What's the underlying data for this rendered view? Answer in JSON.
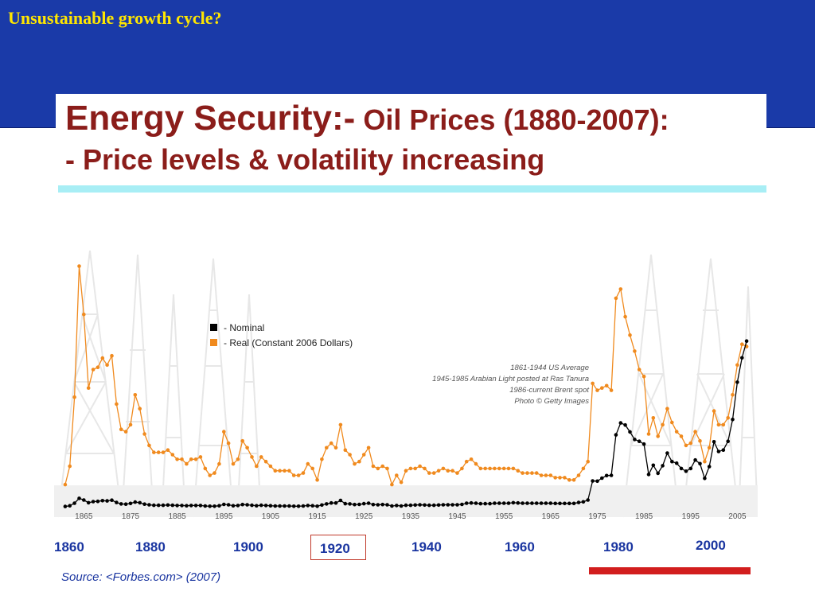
{
  "slide": {
    "title": "Unsustainable growth cycle?",
    "heading_part1": "Energy Security:-",
    "heading_part2": " Oil Prices (1880-2007):",
    "heading_line2": "- Price levels & volatility increasing",
    "source": "Source: <Forbes.com> (2007)",
    "decade_labels": [
      "1860",
      "1880",
      "1900",
      "1920",
      "1940",
      "1960",
      "1980",
      "2000"
    ],
    "highlighted_decade": "1920"
  },
  "colors": {
    "banner": "#1a3aa8",
    "title": "#ffe600",
    "heading": "#8b1d1a",
    "nominal": "#000000",
    "real": "#f08a1e",
    "labels": "#1a35a0",
    "highlight": "#d21e1e"
  },
  "chart_data": {
    "type": "line",
    "x_ticks": [
      "1865",
      "1875",
      "1885",
      "1895",
      "1905",
      "1915",
      "1925",
      "1935",
      "1945",
      "1955",
      "1965",
      "1975",
      "1985",
      "1995",
      "2005"
    ],
    "x": [
      1861,
      1862,
      1863,
      1864,
      1865,
      1866,
      1867,
      1868,
      1869,
      1870,
      1871,
      1872,
      1873,
      1874,
      1875,
      1876,
      1877,
      1878,
      1879,
      1880,
      1881,
      1882,
      1883,
      1884,
      1885,
      1886,
      1887,
      1888,
      1889,
      1890,
      1891,
      1892,
      1893,
      1894,
      1895,
      1896,
      1897,
      1898,
      1899,
      1900,
      1901,
      1902,
      1903,
      1904,
      1905,
      1906,
      1907,
      1908,
      1909,
      1910,
      1911,
      1912,
      1913,
      1914,
      1915,
      1916,
      1917,
      1918,
      1919,
      1920,
      1921,
      1922,
      1923,
      1924,
      1925,
      1926,
      1927,
      1928,
      1929,
      1930,
      1931,
      1932,
      1933,
      1934,
      1935,
      1936,
      1937,
      1938,
      1939,
      1940,
      1941,
      1942,
      1943,
      1944,
      1945,
      1946,
      1947,
      1948,
      1949,
      1950,
      1951,
      1952,
      1953,
      1954,
      1955,
      1956,
      1957,
      1958,
      1959,
      1960,
      1961,
      1962,
      1963,
      1964,
      1965,
      1966,
      1967,
      1968,
      1969,
      1970,
      1971,
      1972,
      1973,
      1974,
      1975,
      1976,
      1977,
      1978,
      1979,
      1980,
      1981,
      1982,
      1983,
      1984,
      1985,
      1986,
      1987,
      1988,
      1989,
      1990,
      1991,
      1992,
      1993,
      1994,
      1995,
      1996,
      1997,
      1998,
      1999,
      2000,
      2001,
      2002,
      2003,
      2004,
      2005,
      2006,
      2007
    ],
    "series": [
      {
        "name": "Nominal",
        "values": [
          0.5,
          0.8,
          1.9,
          4.0,
          3.3,
          2.1,
          2.6,
          2.7,
          3.0,
          2.9,
          3.2,
          2.2,
          1.6,
          1.5,
          1.8,
          2.4,
          2.1,
          1.5,
          1.2,
          1.0,
          1.0,
          1.0,
          1.1,
          1.0,
          0.9,
          0.9,
          0.8,
          0.9,
          0.9,
          0.9,
          0.7,
          0.6,
          0.6,
          0.8,
          1.4,
          1.2,
          0.8,
          0.9,
          1.3,
          1.2,
          1.0,
          0.8,
          1.0,
          0.9,
          0.8,
          0.7,
          0.7,
          0.7,
          0.7,
          0.6,
          0.6,
          0.7,
          0.9,
          0.8,
          0.6,
          1.1,
          1.6,
          2.0,
          2.0,
          3.1,
          1.7,
          1.6,
          1.3,
          1.4,
          1.7,
          1.9,
          1.3,
          1.2,
          1.3,
          1.2,
          0.7,
          0.9,
          0.7,
          1.0,
          1.0,
          1.1,
          1.2,
          1.1,
          1.0,
          1.0,
          1.1,
          1.2,
          1.2,
          1.2,
          1.2,
          1.4,
          1.9,
          2.0,
          1.9,
          1.7,
          1.7,
          1.7,
          1.9,
          1.9,
          1.9,
          1.9,
          2.1,
          2.0,
          1.9,
          1.9,
          1.9,
          1.9,
          1.9,
          1.9,
          1.9,
          1.8,
          1.8,
          1.8,
          1.8,
          1.8,
          2.2,
          2.5,
          3.3,
          11.6,
          11.5,
          12.8,
          13.9,
          14.0,
          31.6,
          36.8,
          35.9,
          32.9,
          29.6,
          28.8,
          27.6,
          14.4,
          18.4,
          14.9,
          18.2,
          23.7,
          20.0,
          19.3,
          17.0,
          15.8,
          17.0,
          20.7,
          19.1,
          12.7,
          17.8,
          28.6,
          24.4,
          25.0,
          28.8,
          38.3,
          54.5,
          65.1,
          72.4
        ]
      },
      {
        "name": "Real (Constant 2006 Dollars)",
        "values": [
          10,
          18,
          48,
          105,
          84,
          52,
          60,
          61,
          65,
          62,
          66,
          45,
          34,
          33,
          36,
          49,
          43,
          32,
          27,
          24,
          24,
          24,
          25,
          23,
          21,
          21,
          19,
          21,
          21,
          22,
          17,
          14,
          15,
          19,
          33,
          28,
          19,
          21,
          29,
          26,
          22,
          18,
          22,
          20,
          18,
          16,
          16,
          16,
          16,
          14,
          14,
          15,
          19,
          17,
          12,
          21,
          26,
          28,
          26,
          36,
          25,
          23,
          19,
          20,
          23,
          26,
          18,
          17,
          18,
          17,
          10,
          14,
          11,
          16,
          17,
          17,
          18,
          17,
          15,
          15,
          16,
          17,
          16,
          16,
          15,
          17,
          20,
          21,
          19,
          17,
          17,
          17,
          17,
          17,
          17,
          17,
          17,
          16,
          15,
          15,
          15,
          15,
          14,
          14,
          14,
          13,
          13,
          13,
          12,
          12,
          14,
          17,
          20,
          54,
          51,
          52,
          53,
          51,
          91,
          95,
          83,
          75,
          68,
          60,
          57,
          32,
          39,
          31,
          36,
          43,
          37,
          33,
          31,
          27,
          28,
          33,
          29,
          20,
          26,
          42,
          36,
          36,
          39,
          49,
          62,
          71,
          70
        ]
      }
    ],
    "legend": [
      "- Nominal",
      "- Real  (Constant 2006 Dollars)"
    ],
    "legend_position": "top-center",
    "annotations": [
      "1861-1944 US Average",
      "1945-1985 Arabian Light posted at Ras Tanura",
      "1986-current Brent spot",
      "Photo © Getty Images"
    ],
    "xlim": [
      1860,
      2008
    ],
    "ylim": [
      0,
      110
    ],
    "grid": false,
    "axes_visible": false
  }
}
